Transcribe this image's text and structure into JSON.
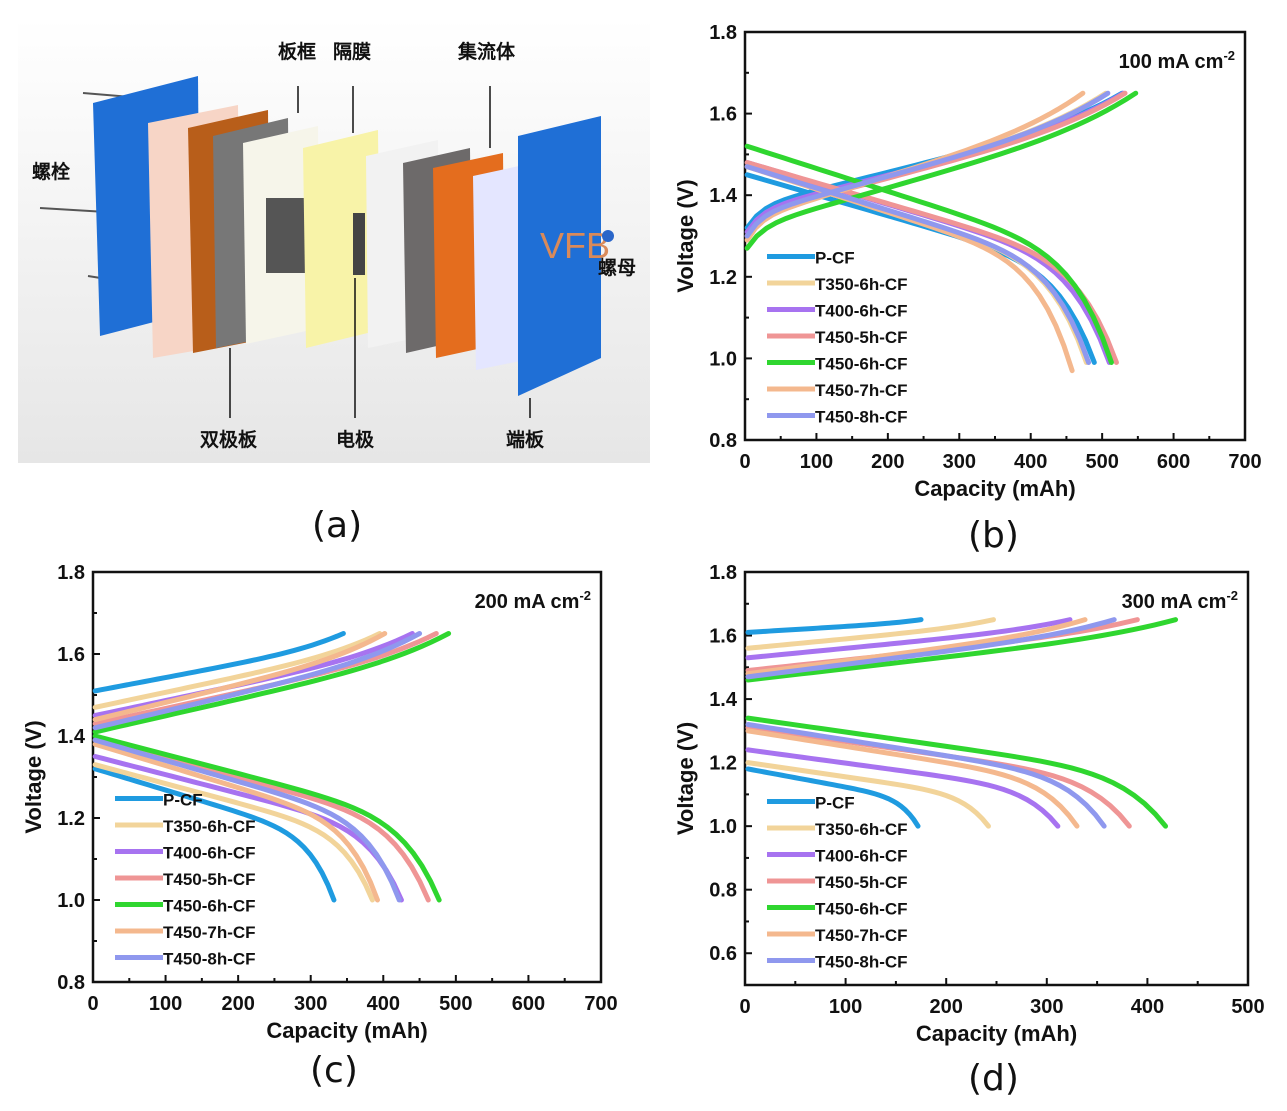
{
  "panel_a": {
    "label": "(a)",
    "plate_text": "VFB",
    "callouts": {
      "bolt": "螺栓",
      "frame": "板框",
      "membrane": "隔膜",
      "collector": "集流体",
      "nut": "螺母",
      "bipolar": "双极板",
      "electrode": "电极",
      "endplate": "端板"
    },
    "colors": {
      "endplate": "#1f6fd6",
      "copper": "#c4651c",
      "graphite": "#6e6e6e",
      "membrane": "#f8f3a8",
      "frame": "#f5f4ea"
    }
  },
  "legend": [
    "P-CF",
    "T350-6h-CF",
    "T400-6h-CF",
    "T450-5h-CF",
    "T450-6h-CF",
    "T450-7h-CF",
    "T450-8h-CF"
  ],
  "series_colors": [
    "#1f9be0",
    "#f2d49a",
    "#a773f0",
    "#ef9595",
    "#2fd62f",
    "#f4b88e",
    "#8f98ee"
  ],
  "chart_data": [
    {
      "panel": "(b)",
      "type": "line",
      "title": "",
      "annotation": "100 mA cm",
      "annotation_sup": "-2",
      "xlabel": "Capacity (mAh)",
      "ylabel": "Voltage (V)",
      "xlim": [
        0,
        700
      ],
      "ylim": [
        0.8,
        1.8
      ],
      "xticks": [
        "0",
        "100",
        "200",
        "300",
        "400",
        "500",
        "600",
        "700"
      ],
      "yticks": [
        "0.8",
        "1.0",
        "1.2",
        "1.4",
        "1.6",
        "1.8"
      ],
      "grid": false,
      "legend_position": "bottom-left",
      "series": [
        {
          "name": "P-CF",
          "charge": {
            "start_v": 1.37,
            "end_cap": 528,
            "end_v": 1.65
          },
          "discharge": {
            "start_v": 1.45,
            "end_cap": 489,
            "end_v": 0.99
          }
        },
        {
          "name": "T350-6h-CF",
          "charge": {
            "start_v": 1.35,
            "end_cap": 505,
            "end_v": 1.65
          },
          "discharge": {
            "start_v": 1.47,
            "end_cap": 478,
            "end_v": 0.99
          }
        },
        {
          "name": "T400-6h-CF",
          "charge": {
            "start_v": 1.36,
            "end_cap": 530,
            "end_v": 1.65
          },
          "discharge": {
            "start_v": 1.48,
            "end_cap": 510,
            "end_v": 0.99
          }
        },
        {
          "name": "T450-5h-CF",
          "charge": {
            "start_v": 1.35,
            "end_cap": 532,
            "end_v": 1.65
          },
          "discharge": {
            "start_v": 1.48,
            "end_cap": 520,
            "end_v": 0.99
          }
        },
        {
          "name": "T450-6h-CF",
          "charge": {
            "start_v": 1.32,
            "end_cap": 547,
            "end_v": 1.65
          },
          "discharge": {
            "start_v": 1.52,
            "end_cap": 513,
            "end_v": 0.99
          }
        },
        {
          "name": "T450-7h-CF",
          "charge": {
            "start_v": 1.34,
            "end_cap": 473,
            "end_v": 1.65
          },
          "discharge": {
            "start_v": 1.47,
            "end_cap": 458,
            "end_v": 0.97
          }
        },
        {
          "name": "T450-8h-CF",
          "charge": {
            "start_v": 1.35,
            "end_cap": 508,
            "end_v": 1.65
          },
          "discharge": {
            "start_v": 1.47,
            "end_cap": 481,
            "end_v": 0.99
          }
        }
      ]
    },
    {
      "panel": "(c)",
      "type": "line",
      "title": "",
      "annotation": "200 mA cm",
      "annotation_sup": "-2",
      "xlabel": "Capacity (mAh)",
      "ylabel": "Voltage (V)",
      "xlim": [
        0,
        700
      ],
      "ylim": [
        0.8,
        1.8
      ],
      "xticks": [
        "0",
        "100",
        "200",
        "300",
        "400",
        "500",
        "600",
        "700"
      ],
      "yticks": [
        "0.8",
        "1.0",
        "1.2",
        "1.4",
        "1.6",
        "1.8"
      ],
      "grid": false,
      "legend_position": "bottom-left",
      "series": [
        {
          "name": "P-CF",
          "charge": {
            "start_v": 1.51,
            "end_cap": 345,
            "end_v": 1.65
          },
          "discharge": {
            "start_v": 1.32,
            "end_cap": 332,
            "end_v": 1.0
          }
        },
        {
          "name": "T350-6h-CF",
          "charge": {
            "start_v": 1.47,
            "end_cap": 395,
            "end_v": 1.65
          },
          "discharge": {
            "start_v": 1.33,
            "end_cap": 385,
            "end_v": 1.0
          }
        },
        {
          "name": "T400-6h-CF",
          "charge": {
            "start_v": 1.45,
            "end_cap": 440,
            "end_v": 1.65
          },
          "discharge": {
            "start_v": 1.35,
            "end_cap": 425,
            "end_v": 1.0
          }
        },
        {
          "name": "T450-5h-CF",
          "charge": {
            "start_v": 1.43,
            "end_cap": 473,
            "end_v": 1.65
          },
          "discharge": {
            "start_v": 1.39,
            "end_cap": 462,
            "end_v": 1.0
          }
        },
        {
          "name": "T450-6h-CF",
          "charge": {
            "start_v": 1.41,
            "end_cap": 490,
            "end_v": 1.65
          },
          "discharge": {
            "start_v": 1.4,
            "end_cap": 477,
            "end_v": 1.0
          }
        },
        {
          "name": "T450-7h-CF",
          "charge": {
            "start_v": 1.44,
            "end_cap": 402,
            "end_v": 1.65
          },
          "discharge": {
            "start_v": 1.38,
            "end_cap": 392,
            "end_v": 1.0
          }
        },
        {
          "name": "T450-8h-CF",
          "charge": {
            "start_v": 1.42,
            "end_cap": 450,
            "end_v": 1.65
          },
          "discharge": {
            "start_v": 1.39,
            "end_cap": 422,
            "end_v": 1.0
          }
        }
      ]
    },
    {
      "panel": "(d)",
      "type": "line",
      "title": "",
      "annotation": "300 mA cm",
      "annotation_sup": "-2",
      "xlabel": "Capacity (mAh)",
      "ylabel": "Voltage (V)",
      "xlim": [
        0,
        500
      ],
      "ylim": [
        0.5,
        1.8
      ],
      "xticks": [
        "0",
        "100",
        "200",
        "300",
        "400",
        "500"
      ],
      "yticks": [
        "0.6",
        "0.8",
        "1.0",
        "1.2",
        "1.4",
        "1.6",
        "1.8"
      ],
      "grid": false,
      "legend_position": "bottom-left",
      "series": [
        {
          "name": "P-CF",
          "charge": {
            "start_v": 1.61,
            "end_cap": 175,
            "end_v": 1.65
          },
          "discharge": {
            "start_v": 1.18,
            "end_cap": 172,
            "end_v": 1.0
          }
        },
        {
          "name": "T350-6h-CF",
          "charge": {
            "start_v": 1.56,
            "end_cap": 247,
            "end_v": 1.65
          },
          "discharge": {
            "start_v": 1.2,
            "end_cap": 242,
            "end_v": 1.0
          }
        },
        {
          "name": "T400-6h-CF",
          "charge": {
            "start_v": 1.53,
            "end_cap": 323,
            "end_v": 1.65
          },
          "discharge": {
            "start_v": 1.24,
            "end_cap": 311,
            "end_v": 1.0
          }
        },
        {
          "name": "T450-5h-CF",
          "charge": {
            "start_v": 1.49,
            "end_cap": 390,
            "end_v": 1.65
          },
          "discharge": {
            "start_v": 1.31,
            "end_cap": 382,
            "end_v": 1.0
          }
        },
        {
          "name": "T450-6h-CF",
          "charge": {
            "start_v": 1.46,
            "end_cap": 428,
            "end_v": 1.65
          },
          "discharge": {
            "start_v": 1.34,
            "end_cap": 418,
            "end_v": 1.0
          }
        },
        {
          "name": "T450-7h-CF",
          "charge": {
            "start_v": 1.48,
            "end_cap": 338,
            "end_v": 1.65
          },
          "discharge": {
            "start_v": 1.3,
            "end_cap": 330,
            "end_v": 1.0
          }
        },
        {
          "name": "T450-8h-CF",
          "charge": {
            "start_v": 1.47,
            "end_cap": 367,
            "end_v": 1.65
          },
          "discharge": {
            "start_v": 1.32,
            "end_cap": 357,
            "end_v": 1.0
          }
        }
      ]
    }
  ]
}
